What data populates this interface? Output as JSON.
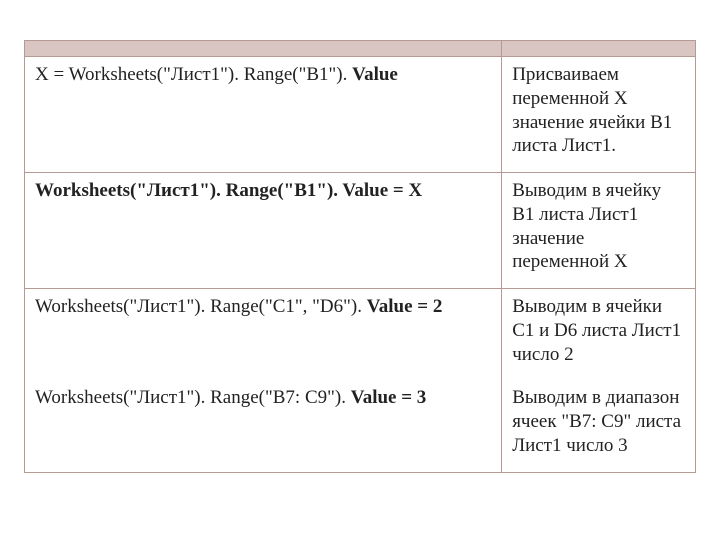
{
  "table": {
    "rows": [
      {
        "left": "X = Worksheets(\"Лист1\"). Range(\"B1\"). <b>Value</b>",
        "right": "Присваиваем переменной X значение ячейки B1 листа Лист1."
      },
      {
        "left": "<b>Worksheets(\"Лист1\"). Range(\"B1\"). Value = X</b>",
        "right": "Выводим в ячейку B1 листа  Лист1 значение переменной  X"
      },
      {
        "left": "Worksheets(\"Лист1\"). Range(\"C1\", \"D6\"). <b>Value = 2</b>",
        "right": "Выводим в ячейки C1 и  D6 листа  Лист1 число 2"
      },
      {
        "left": "Worksheets(\"Лист1\"). Range(\"B7: C9\"). <b>Value = 3</b>",
        "right": "Выводим в диапазон ячеек  \"B7: C9\" листа Лист1 число 3"
      }
    ],
    "merge_last_two": true,
    "header_bg": "#d9c6c2",
    "border_color": "#b59a94",
    "font_size": 19
  }
}
